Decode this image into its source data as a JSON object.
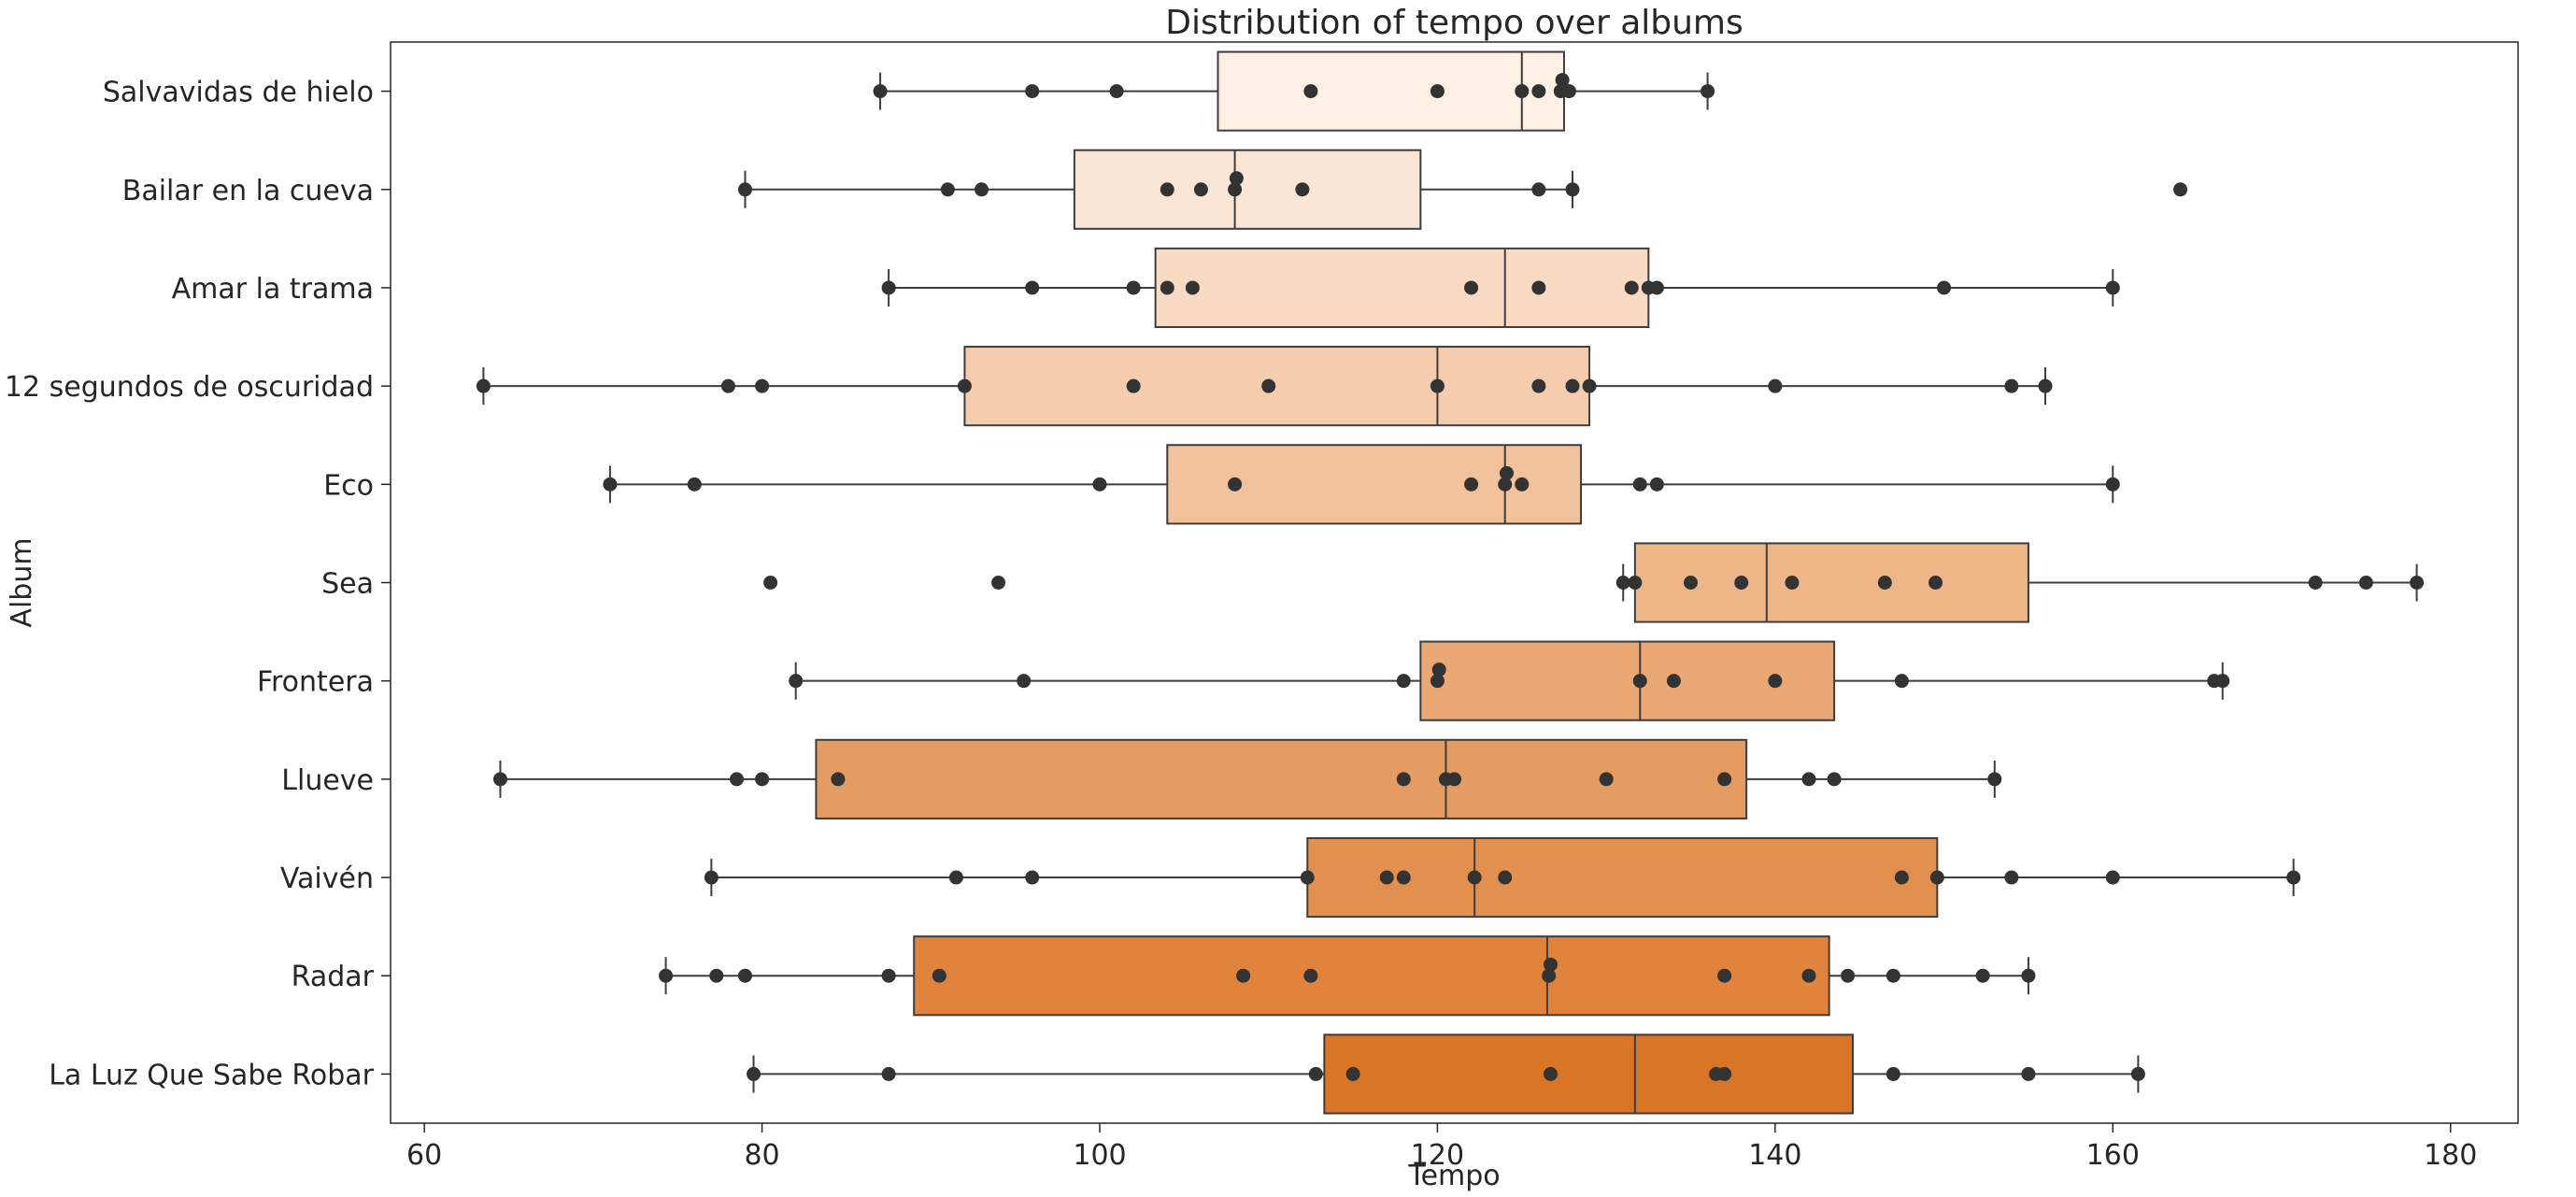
{
  "chart_data": {
    "type": "box",
    "title": "Distribution of tempo over albums",
    "xlabel": "Tempo",
    "ylabel": "Album",
    "xlim": [
      58,
      184
    ],
    "xticks": [
      60,
      80,
      100,
      120,
      140,
      160,
      180
    ],
    "grid": false,
    "series": [
      {
        "name": "Salvavidas de hielo",
        "color": "#fdf0e5",
        "box": {
          "whisker_low": 87,
          "q1": 107,
          "median": 125,
          "q3": 127.5,
          "whisker_high": 136
        },
        "points": [
          87,
          96,
          101,
          112.5,
          120,
          125,
          126,
          127.3,
          127.4,
          127.8,
          136
        ]
      },
      {
        "name": "Bailar en la cueva",
        "color": "#fbe5d4",
        "box": {
          "whisker_low": 79,
          "q1": 98.5,
          "median": 108,
          "q3": 119,
          "whisker_high": 128
        },
        "points": [
          79,
          91,
          93,
          104,
          106,
          108,
          108.1,
          112,
          126,
          128,
          164
        ]
      },
      {
        "name": "Amar la trama",
        "color": "#f9dac2",
        "box": {
          "whisker_low": 87.5,
          "q1": 103.3,
          "median": 124,
          "q3": 132.5,
          "whisker_high": 160
        },
        "points": [
          87.5,
          96,
          102,
          104,
          105.5,
          122,
          126,
          131.5,
          132.5,
          133,
          150,
          160
        ]
      },
      {
        "name": "12 segundos de oscuridad",
        "color": "#f5cdae",
        "box": {
          "whisker_low": 63.5,
          "q1": 92,
          "median": 120,
          "q3": 129,
          "whisker_high": 156
        },
        "points": [
          63.5,
          78,
          80,
          92,
          102,
          110,
          120,
          126,
          128,
          129,
          140,
          154,
          156
        ]
      },
      {
        "name": "Eco",
        "color": "#f1c29c",
        "box": {
          "whisker_low": 71,
          "q1": 104,
          "median": 124,
          "q3": 128.5,
          "whisker_high": 160
        },
        "points": [
          71,
          76,
          100,
          108,
          122,
          124,
          124.1,
          125,
          132,
          133,
          160
        ]
      },
      {
        "name": "Sea",
        "color": "#eeb586",
        "box": {
          "whisker_low": 131,
          "q1": 131.7,
          "median": 139.5,
          "q3": 155,
          "whisker_high": 178
        },
        "points": [
          80.5,
          94,
          131,
          131.7,
          135,
          138,
          141,
          146.5,
          149.5,
          172,
          175,
          178
        ]
      },
      {
        "name": "Frontera",
        "color": "#eaa874",
        "box": {
          "whisker_low": 82,
          "q1": 119,
          "median": 132,
          "q3": 143.5,
          "whisker_high": 166.5
        },
        "points": [
          82,
          95.5,
          118,
          120,
          120.1,
          132,
          134,
          140,
          147.5,
          166,
          166.5
        ]
      },
      {
        "name": "Llueve",
        "color": "#e59c62",
        "box": {
          "whisker_low": 64.5,
          "q1": 83.2,
          "median": 120.5,
          "q3": 138.3,
          "whisker_high": 153
        },
        "points": [
          64.5,
          78.5,
          80,
          84.5,
          118,
          120.5,
          121,
          130,
          137,
          142,
          143.5,
          153
        ]
      },
      {
        "name": "Vaivén",
        "color": "#e2904f",
        "box": {
          "whisker_low": 77,
          "q1": 112.3,
          "median": 122.2,
          "q3": 149.6,
          "whisker_high": 170.7
        },
        "points": [
          77,
          91.5,
          96,
          112.3,
          117,
          118,
          122.2,
          124,
          147.5,
          149.6,
          154,
          160,
          170.7
        ]
      },
      {
        "name": "Radar",
        "color": "#df833d",
        "box": {
          "whisker_low": 74.3,
          "q1": 89,
          "median": 126.5,
          "q3": 143.2,
          "whisker_high": 155
        },
        "points": [
          74.3,
          77.3,
          79,
          87.5,
          90.5,
          108.5,
          112.5,
          126.6,
          126.7,
          137,
          142,
          144.3,
          147,
          152.3,
          155
        ]
      },
      {
        "name": "La Luz Que Sabe Robar",
        "color": "#db7526",
        "box": {
          "whisker_low": 79.5,
          "q1": 113.3,
          "median": 131.7,
          "q3": 144.6,
          "whisker_high": 161.5
        },
        "points": [
          79.5,
          87.5,
          112.8,
          115,
          126.7,
          136.5,
          137,
          147,
          155,
          161.5
        ]
      }
    ]
  }
}
